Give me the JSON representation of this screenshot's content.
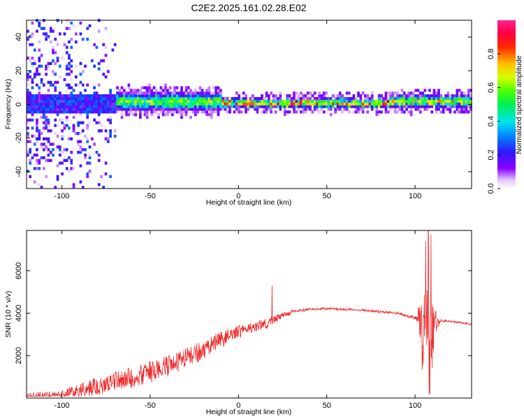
{
  "title": "C2E2.2025.161.02.28.E02",
  "colors": {
    "snr_line": "#ee2a2a",
    "background": "#ffffff",
    "frame": "#000000"
  },
  "chart_data": [
    {
      "type": "heatmap",
      "xlabel": "Height of straight line (km)",
      "ylabel": "Frequency (Hz)",
      "xlim": [
        -120,
        132
      ],
      "ylim": [
        -50,
        50
      ],
      "x_ticks": [
        -100,
        -50,
        0,
        50,
        100
      ],
      "y_ticks": [
        -40,
        -20,
        0,
        20,
        40
      ],
      "colormap": "rainbow (purple→blue→cyan→green→yellow→red→magenta)",
      "grid": false,
      "colorbar": {
        "label": "Normalized spectral amplitude",
        "range": [
          0.0,
          1.0
        ],
        "ticks": [
          "0.0",
          "0.2",
          "0.4",
          "0.6",
          "0.8"
        ],
        "tick_values": [
          0.0,
          0.2,
          0.4,
          0.6,
          0.8
        ]
      },
      "description_of_data": [
        {
          "x_range": [
            -120,
            -70
          ],
          "freq_spread": 50,
          "peak_amplitude": 0.3
        },
        {
          "x_range": [
            -70,
            -10
          ],
          "freq_center": 1,
          "freq_spread": 6,
          "peak_amplitude": 0.65
        },
        {
          "x_range": [
            -10,
            85
          ],
          "freq_center": 0,
          "freq_spread": 3,
          "peak_amplitude": 0.85
        },
        {
          "x_range": [
            85,
            132
          ],
          "freq_center": 1,
          "freq_spread": 4,
          "peak_amplitude": 0.75
        }
      ]
    },
    {
      "type": "line",
      "xlabel": "Height of straight line (km)",
      "ylabel": "SNR (10 * v/v)",
      "xlim": [
        -120,
        132
      ],
      "ylim": [
        0,
        7900
      ],
      "x_ticks": [
        -100,
        -50,
        0,
        50,
        100
      ],
      "y_ticks": [
        2000,
        4000,
        6000
      ],
      "grid": false,
      "series": [
        {
          "envelope_x": [
            -120,
            -100,
            -90,
            -80,
            -70,
            -60,
            -50,
            -40,
            -30,
            -20,
            -15,
            -10,
            -5,
            0,
            5,
            10,
            15,
            20,
            25,
            30,
            40,
            50,
            60,
            70,
            80,
            90,
            95,
            100,
            103,
            105,
            107,
            109,
            111,
            115,
            120,
            125,
            132
          ],
          "envelope_y": [
            200,
            350,
            600,
            900,
            1200,
            1400,
            1650,
            1950,
            2250,
            2600,
            2850,
            3050,
            3250,
            3400,
            3500,
            3550,
            3700,
            3850,
            4000,
            4120,
            4220,
            4250,
            4220,
            4180,
            4120,
            4050,
            3950,
            3850,
            3900,
            4000,
            4000,
            3900,
            3800,
            3700,
            3650,
            3600,
            3500
          ],
          "noise_amplitude": [
            350,
            400,
            600,
            800,
            900,
            950,
            1000,
            950,
            900,
            850,
            800,
            750,
            700,
            600,
            500,
            500,
            500,
            400,
            250,
            200,
            180,
            180,
            180,
            180,
            200,
            200,
            250,
            300,
            1800,
            3500,
            3800,
            3500,
            1500,
            200,
            150,
            150,
            150
          ],
          "spikes": [
            {
              "x": 19,
              "y": 5300
            },
            {
              "x": 106,
              "y": 7400
            },
            {
              "x": 107.5,
              "y": 7900
            },
            {
              "x": 109,
              "y": 7700
            },
            {
              "x": 108,
              "y": 200
            }
          ]
        }
      ]
    }
  ]
}
